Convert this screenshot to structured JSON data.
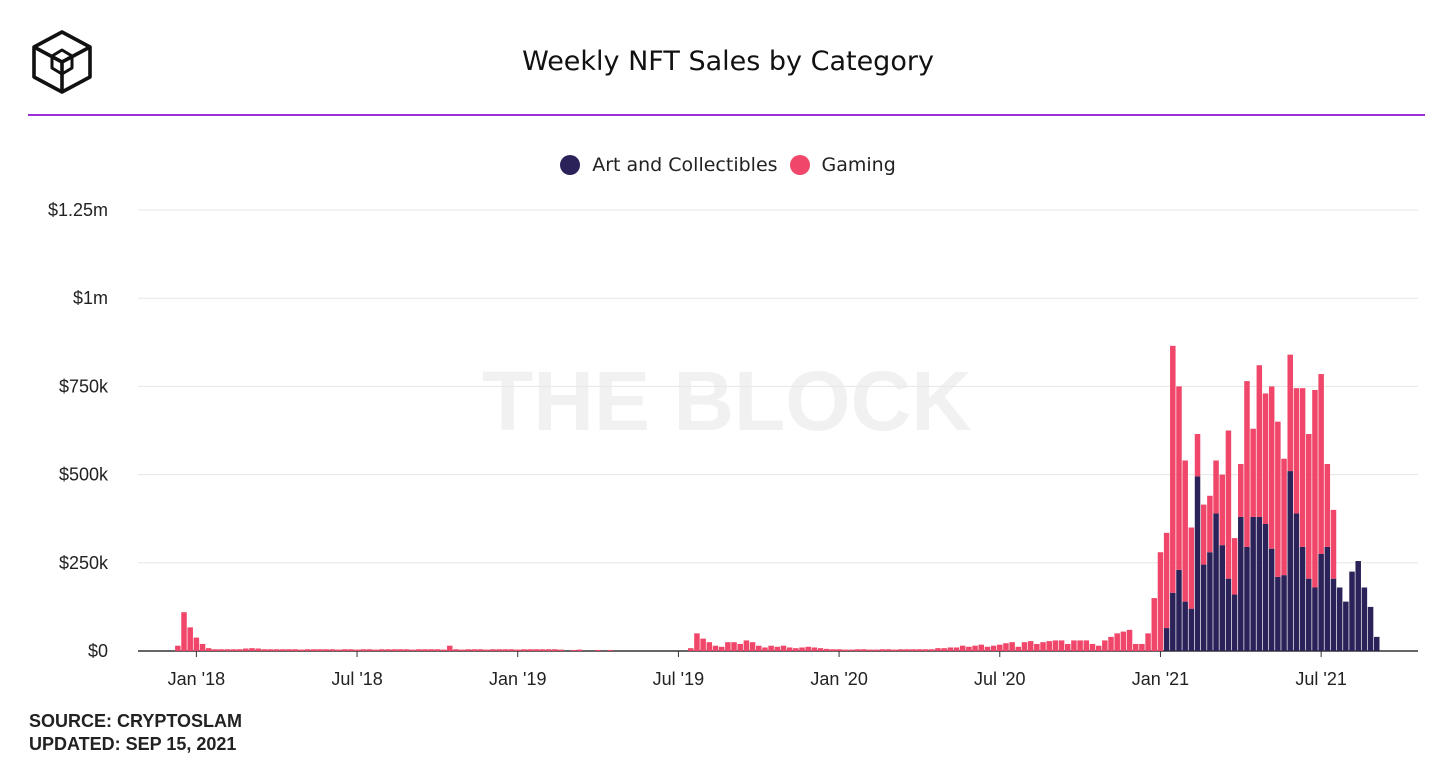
{
  "header": {
    "title": "Weekly NFT Sales by Category"
  },
  "brand": {
    "logo_icon": "the-block-cube-logo-icon",
    "accent_color": "#9b2fd9"
  },
  "legend": [
    {
      "label": "Art and Collectibles",
      "color": "#2b2259"
    },
    {
      "label": "Gaming",
      "color": "#ef4669"
    }
  ],
  "watermark": "THE BLOCK",
  "footer": {
    "source": "SOURCE: CRYPTOSLAM",
    "updated": "UPDATED: SEP 15, 2021"
  },
  "chart_data": {
    "type": "bar",
    "stacked": true,
    "title": "Weekly NFT Sales by Category",
    "xlabel": "",
    "ylabel": "",
    "ylim": [
      0,
      1250000
    ],
    "y_ticks": [
      {
        "value": 0,
        "label": "$0"
      },
      {
        "value": 250000,
        "label": "$250k"
      },
      {
        "value": 500000,
        "label": "$500k"
      },
      {
        "value": 750000,
        "label": "$750k"
      },
      {
        "value": 1000000,
        "label": "$1m"
      },
      {
        "value": 1250000,
        "label": "$1.25m"
      }
    ],
    "x_ticks": [
      {
        "index": 9,
        "label": "Jan '18"
      },
      {
        "index": 35,
        "label": "Jul '18"
      },
      {
        "index": 61,
        "label": "Jan '19"
      },
      {
        "index": 87,
        "label": "Jul '19"
      },
      {
        "index": 113,
        "label": "Jan '20"
      },
      {
        "index": 139,
        "label": "Jul '20"
      },
      {
        "index": 165,
        "label": "Jan '21"
      },
      {
        "index": 191,
        "label": "Jul '21"
      }
    ],
    "grid": true,
    "legend_position": "top-center",
    "series": [
      {
        "name": "Art and Collectibles",
        "color": "#2b2259",
        "values": [
          0,
          0,
          0,
          0,
          0,
          0,
          0,
          0,
          0,
          0,
          0,
          0,
          0,
          0,
          0,
          0,
          0,
          0,
          0,
          0,
          0,
          0,
          0,
          0,
          0,
          0,
          0,
          0,
          0,
          0,
          0,
          0,
          0,
          0,
          0,
          0,
          0,
          0,
          0,
          0,
          0,
          0,
          0,
          0,
          0,
          0,
          0,
          0,
          0,
          0,
          0,
          0,
          0,
          0,
          0,
          0,
          0,
          0,
          0,
          0,
          0,
          0,
          0,
          0,
          0,
          0,
          0,
          0,
          0,
          0,
          0,
          0,
          0,
          0,
          0,
          0,
          0,
          0,
          0,
          0,
          0,
          0,
          0,
          0,
          0,
          0,
          0,
          0,
          0,
          0,
          0,
          0,
          0,
          0,
          0,
          0,
          0,
          0,
          0,
          0,
          0,
          0,
          0,
          0,
          0,
          0,
          0,
          0,
          0,
          0,
          0,
          0,
          0,
          0,
          0,
          0,
          0,
          0,
          0,
          0,
          0,
          0,
          0,
          0,
          0,
          0,
          0,
          0,
          0,
          0,
          0,
          0,
          0,
          0,
          0,
          0,
          0,
          0,
          0,
          0,
          0,
          0,
          0,
          0,
          0,
          0,
          0,
          0,
          0,
          0,
          0,
          0,
          0,
          0,
          0,
          0,
          0,
          0,
          0,
          0,
          0,
          0,
          0,
          0,
          0,
          0,
          65000,
          165000,
          230000,
          140000,
          120000,
          495000,
          245000,
          280000,
          390000,
          300000,
          205000,
          160000,
          380000,
          295000,
          380000,
          380000,
          360000,
          290000,
          210000,
          215000,
          510000,
          390000,
          295000,
          205000,
          180000,
          275000,
          295000,
          205000,
          180000,
          140000,
          225000,
          255000,
          180000,
          125000,
          40000
        ]
      },
      {
        "name": "Gaming",
        "color": "#ef4669",
        "values": [
          0,
          0,
          0,
          0,
          0,
          0,
          15000,
          110000,
          67000,
          38000,
          20000,
          8000,
          5000,
          5000,
          5000,
          5000,
          5000,
          7000,
          8000,
          7000,
          5000,
          5000,
          5000,
          5000,
          5000,
          5000,
          4000,
          5000,
          5000,
          5000,
          5000,
          5000,
          4000,
          5000,
          5000,
          4000,
          5000,
          5000,
          4000,
          5000,
          5000,
          5000,
          5000,
          5000,
          4000,
          5000,
          5000,
          5000,
          5000,
          4000,
          15000,
          5000,
          4000,
          5000,
          5000,
          5000,
          4000,
          5000,
          5000,
          5000,
          5000,
          4000,
          5000,
          5000,
          5000,
          5000,
          5000,
          5000,
          4000,
          0,
          3000,
          4000,
          0,
          0,
          3000,
          0,
          3000,
          0,
          0,
          0,
          0,
          0,
          0,
          0,
          0,
          0,
          0,
          0,
          0,
          8000,
          50000,
          35000,
          25000,
          15000,
          12000,
          25000,
          25000,
          20000,
          30000,
          25000,
          15000,
          10000,
          15000,
          12000,
          15000,
          10000,
          8000,
          10000,
          12000,
          10000,
          8000,
          6000,
          5000,
          5000,
          4000,
          4000,
          5000,
          5000,
          4000,
          4000,
          5000,
          5000,
          4000,
          5000,
          5000,
          5000,
          5000,
          5000,
          5000,
          8000,
          8000,
          10000,
          10000,
          15000,
          12000,
          15000,
          18000,
          12000,
          15000,
          18000,
          22000,
          25000,
          12000,
          25000,
          28000,
          20000,
          25000,
          28000,
          30000,
          30000,
          20000,
          30000,
          30000,
          30000,
          20000,
          15000,
          30000,
          40000,
          50000,
          55000,
          60000,
          20000,
          20000,
          50000,
          150000,
          280000,
          270000,
          700000,
          520000,
          400000,
          230000,
          120000,
          170000,
          160000,
          150000,
          200000,
          420000,
          160000,
          150000,
          470000,
          250000,
          430000,
          370000,
          460000,
          440000,
          330000,
          330000,
          355000,
          450000,
          410000,
          560000,
          510000,
          235000,
          195000
        ]
      }
    ]
  }
}
